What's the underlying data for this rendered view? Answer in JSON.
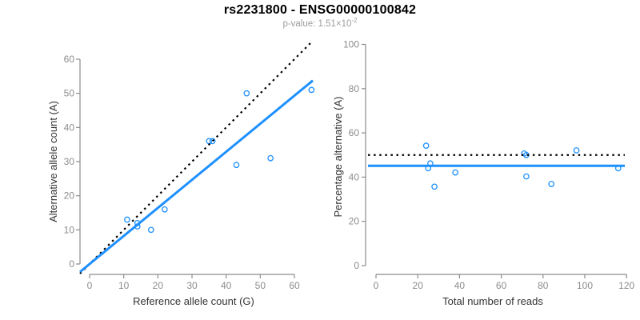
{
  "header": {
    "title": "rs2231800 - ENSG00000100842",
    "subtitle_text": "p-value: 1.51×10",
    "subtitle_exponent": "-2"
  },
  "theme": {
    "background": "#ffffff",
    "accent_blue": "#1e90ff",
    "null_line_color": "#000000",
    "axis_color": "#8c8c8c",
    "tick_label_color": "#8c8c8c",
    "axis_title_color": "#333333",
    "title_color": "#000000",
    "subtitle_color": "#9c9c9c"
  },
  "chart_data": [
    {
      "name": "allele-count-scatter",
      "type": "scatter",
      "title": "",
      "xlabel": "Reference allele count (G)",
      "ylabel": "Alternative allele count (A)",
      "xlim": [
        0,
        60
      ],
      "ylim": [
        0,
        60
      ],
      "xticks": [
        0,
        10,
        20,
        30,
        40,
        50,
        60
      ],
      "yticks": [
        0,
        10,
        20,
        30,
        40,
        50,
        60
      ],
      "grid": false,
      "legend": "none",
      "marker": "open-circle",
      "point_color": "#1e90ff",
      "points": [
        [
          11,
          13
        ],
        [
          14,
          12
        ],
        [
          14,
          11
        ],
        [
          18,
          10
        ],
        [
          22,
          16
        ],
        [
          35,
          36
        ],
        [
          36,
          36
        ],
        [
          43,
          29
        ],
        [
          46,
          50
        ],
        [
          53,
          31
        ],
        [
          65,
          51
        ]
      ],
      "lines": [
        {
          "name": "null-expectation-identity-line",
          "style": "dotted",
          "color": "#000000",
          "slope": 1,
          "intercept": 0
        },
        {
          "name": "fitted-proportion-line",
          "style": "solid",
          "color": "#1e90ff",
          "slope": 0.822,
          "intercept": 0
        }
      ]
    },
    {
      "name": "percentage-vs-reads-scatter",
      "type": "scatter",
      "title": "",
      "xlabel": "Total number of reads",
      "ylabel": "Percentage alternative (A)",
      "xlim": [
        0,
        120
      ],
      "ylim": [
        0,
        100
      ],
      "xticks": [
        0,
        20,
        40,
        60,
        80,
        100,
        120
      ],
      "yticks": [
        0,
        20,
        40,
        60,
        80,
        100
      ],
      "grid": false,
      "legend": "none",
      "marker": "open-circle",
      "point_color": "#1e90ff",
      "points": [
        [
          24,
          54.2
        ],
        [
          26,
          46.2
        ],
        [
          25,
          44.0
        ],
        [
          28,
          35.7
        ],
        [
          38,
          42.1
        ],
        [
          71,
          50.7
        ],
        [
          72,
          50.0
        ],
        [
          72,
          40.3
        ],
        [
          96,
          52.1
        ],
        [
          84,
          36.9
        ],
        [
          116,
          44.0
        ]
      ],
      "lines": [
        {
          "name": "null-50-percent-line",
          "style": "dotted",
          "color": "#000000",
          "slope": 0,
          "intercept": 50
        },
        {
          "name": "mean-percentage-line",
          "style": "solid",
          "color": "#1e90ff",
          "slope": 0,
          "intercept": 45.1
        }
      ]
    }
  ]
}
